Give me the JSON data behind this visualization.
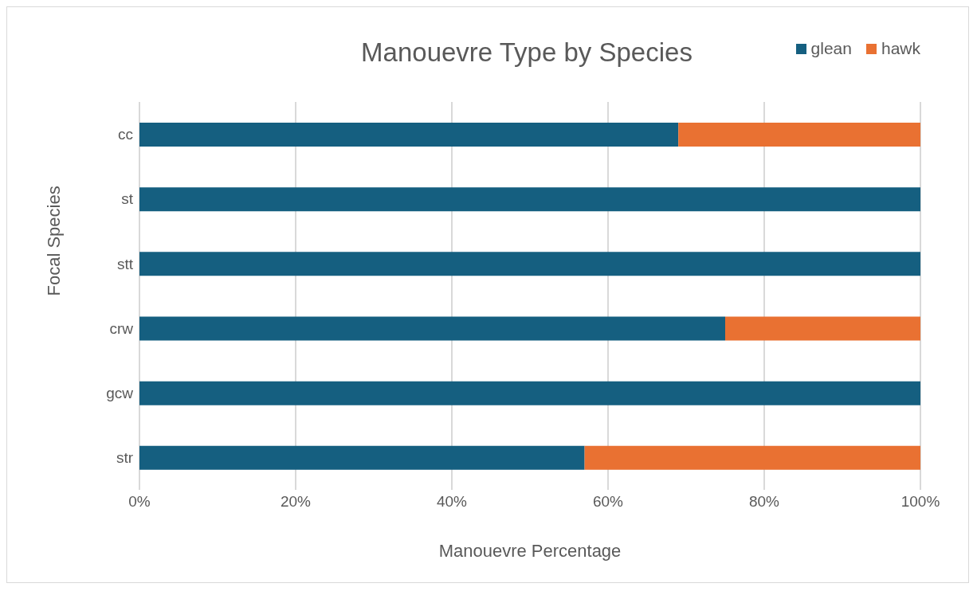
{
  "chart_data": {
    "type": "bar",
    "orientation": "horizontal",
    "stacked": true,
    "title": "Manouevre Type by Species",
    "xlabel": "Manouevre Percentage",
    "ylabel": "Focal Species",
    "categories": [
      "cc",
      "st",
      "stt",
      "crw",
      "gcw",
      "str"
    ],
    "series": [
      {
        "name": "glean",
        "color": "#155f80",
        "values": [
          69,
          100,
          100,
          75,
          100,
          57
        ]
      },
      {
        "name": "hawk",
        "color": "#e97132",
        "values": [
          31,
          0,
          0,
          25,
          0,
          43
        ]
      }
    ],
    "xlim": [
      0,
      100
    ],
    "xticks": [
      {
        "value": 0,
        "label": "0%"
      },
      {
        "value": 20,
        "label": "20%"
      },
      {
        "value": 40,
        "label": "40%"
      },
      {
        "value": 60,
        "label": "60%"
      },
      {
        "value": 80,
        "label": "80%"
      },
      {
        "value": 100,
        "label": "100%"
      }
    ],
    "grid": "x",
    "legend": "top right"
  }
}
